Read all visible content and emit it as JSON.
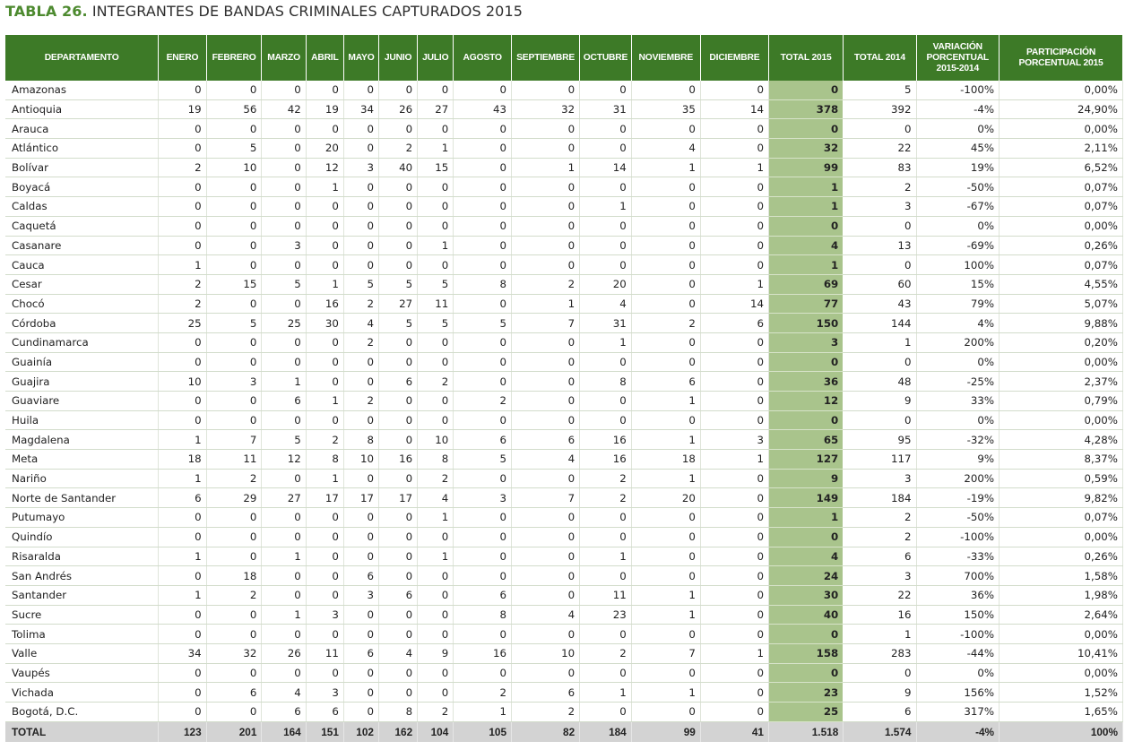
{
  "title": {
    "prefix": "TABLA 26.",
    "text": " INTEGRANTES DE BANDAS CRIMINALES CAPTURADOS 2015"
  },
  "headers": [
    "DEPARTAMENTO",
    "ENERO",
    "FEBRERO",
    "MARZO",
    "ABRIL",
    "MAYO",
    "JUNIO",
    "JULIO",
    "AGOSTO",
    "SEPTIEMBRE",
    "OCTUBRE",
    "NOVIEMBRE",
    "DICIEMBRE",
    "TOTAL 2015",
    "TOTAL 2014",
    "VARIACIÓN PORCENTUAL 2015-2014",
    "PARTICIPACIÓN PORCENTUAL 2015"
  ],
  "rows": [
    [
      "Amazonas",
      "0",
      "0",
      "0",
      "0",
      "0",
      "0",
      "0",
      "0",
      "0",
      "0",
      "0",
      "0",
      "0",
      "5",
      "-100%",
      "0,00%"
    ],
    [
      "Antioquia",
      "19",
      "56",
      "42",
      "19",
      "34",
      "26",
      "27",
      "43",
      "32",
      "31",
      "35",
      "14",
      "378",
      "392",
      "-4%",
      "24,90%"
    ],
    [
      "Arauca",
      "0",
      "0",
      "0",
      "0",
      "0",
      "0",
      "0",
      "0",
      "0",
      "0",
      "0",
      "0",
      "0",
      "0",
      "0%",
      "0,00%"
    ],
    [
      "Atlántico",
      "0",
      "5",
      "0",
      "20",
      "0",
      "2",
      "1",
      "0",
      "0",
      "0",
      "4",
      "0",
      "32",
      "22",
      "45%",
      "2,11%"
    ],
    [
      "Bolívar",
      "2",
      "10",
      "0",
      "12",
      "3",
      "40",
      "15",
      "0",
      "1",
      "14",
      "1",
      "1",
      "99",
      "83",
      "19%",
      "6,52%"
    ],
    [
      "Boyacá",
      "0",
      "0",
      "0",
      "1",
      "0",
      "0",
      "0",
      "0",
      "0",
      "0",
      "0",
      "0",
      "1",
      "2",
      "-50%",
      "0,07%"
    ],
    [
      "Caldas",
      "0",
      "0",
      "0",
      "0",
      "0",
      "0",
      "0",
      "0",
      "0",
      "1",
      "0",
      "0",
      "1",
      "3",
      "-67%",
      "0,07%"
    ],
    [
      "Caquetá",
      "0",
      "0",
      "0",
      "0",
      "0",
      "0",
      "0",
      "0",
      "0",
      "0",
      "0",
      "0",
      "0",
      "0",
      "0%",
      "0,00%"
    ],
    [
      "Casanare",
      "0",
      "0",
      "3",
      "0",
      "0",
      "0",
      "1",
      "0",
      "0",
      "0",
      "0",
      "0",
      "4",
      "13",
      "-69%",
      "0,26%"
    ],
    [
      "Cauca",
      "1",
      "0",
      "0",
      "0",
      "0",
      "0",
      "0",
      "0",
      "0",
      "0",
      "0",
      "0",
      "1",
      "0",
      "100%",
      "0,07%"
    ],
    [
      "Cesar",
      "2",
      "15",
      "5",
      "1",
      "5",
      "5",
      "5",
      "8",
      "2",
      "20",
      "0",
      "1",
      "69",
      "60",
      "15%",
      "4,55%"
    ],
    [
      "Chocó",
      "2",
      "0",
      "0",
      "16",
      "2",
      "27",
      "11",
      "0",
      "1",
      "4",
      "0",
      "14",
      "77",
      "43",
      "79%",
      "5,07%"
    ],
    [
      "Córdoba",
      "25",
      "5",
      "25",
      "30",
      "4",
      "5",
      "5",
      "5",
      "7",
      "31",
      "2",
      "6",
      "150",
      "144",
      "4%",
      "9,88%"
    ],
    [
      "Cundinamarca",
      "0",
      "0",
      "0",
      "0",
      "2",
      "0",
      "0",
      "0",
      "0",
      "1",
      "0",
      "0",
      "3",
      "1",
      "200%",
      "0,20%"
    ],
    [
      "Guainía",
      "0",
      "0",
      "0",
      "0",
      "0",
      "0",
      "0",
      "0",
      "0",
      "0",
      "0",
      "0",
      "0",
      "0",
      "0%",
      "0,00%"
    ],
    [
      "Guajira",
      "10",
      "3",
      "1",
      "0",
      "0",
      "6",
      "2",
      "0",
      "0",
      "8",
      "6",
      "0",
      "36",
      "48",
      "-25%",
      "2,37%"
    ],
    [
      "Guaviare",
      "0",
      "0",
      "6",
      "1",
      "2",
      "0",
      "0",
      "2",
      "0",
      "0",
      "1",
      "0",
      "12",
      "9",
      "33%",
      "0,79%"
    ],
    [
      "Huila",
      "0",
      "0",
      "0",
      "0",
      "0",
      "0",
      "0",
      "0",
      "0",
      "0",
      "0",
      "0",
      "0",
      "0",
      "0%",
      "0,00%"
    ],
    [
      "Magdalena",
      "1",
      "7",
      "5",
      "2",
      "8",
      "0",
      "10",
      "6",
      "6",
      "16",
      "1",
      "3",
      "65",
      "95",
      "-32%",
      "4,28%"
    ],
    [
      "Meta",
      "18",
      "11",
      "12",
      "8",
      "10",
      "16",
      "8",
      "5",
      "4",
      "16",
      "18",
      "1",
      "127",
      "117",
      "9%",
      "8,37%"
    ],
    [
      "Nariño",
      "1",
      "2",
      "0",
      "1",
      "0",
      "0",
      "2",
      "0",
      "0",
      "2",
      "1",
      "0",
      "9",
      "3",
      "200%",
      "0,59%"
    ],
    [
      "Norte de Santander",
      "6",
      "29",
      "27",
      "17",
      "17",
      "17",
      "4",
      "3",
      "7",
      "2",
      "20",
      "0",
      "149",
      "184",
      "-19%",
      "9,82%"
    ],
    [
      "Putumayo",
      "0",
      "0",
      "0",
      "0",
      "0",
      "0",
      "1",
      "0",
      "0",
      "0",
      "0",
      "0",
      "1",
      "2",
      "-50%",
      "0,07%"
    ],
    [
      "Quindío",
      "0",
      "0",
      "0",
      "0",
      "0",
      "0",
      "0",
      "0",
      "0",
      "0",
      "0",
      "0",
      "0",
      "2",
      "-100%",
      "0,00%"
    ],
    [
      "Risaralda",
      "1",
      "0",
      "1",
      "0",
      "0",
      "0",
      "1",
      "0",
      "0",
      "1",
      "0",
      "0",
      "4",
      "6",
      "-33%",
      "0,26%"
    ],
    [
      "San Andrés",
      "0",
      "18",
      "0",
      "0",
      "6",
      "0",
      "0",
      "0",
      "0",
      "0",
      "0",
      "0",
      "24",
      "3",
      "700%",
      "1,58%"
    ],
    [
      "Santander",
      "1",
      "2",
      "0",
      "0",
      "3",
      "6",
      "0",
      "6",
      "0",
      "11",
      "1",
      "0",
      "30",
      "22",
      "36%",
      "1,98%"
    ],
    [
      "Sucre",
      "0",
      "0",
      "1",
      "3",
      "0",
      "0",
      "0",
      "8",
      "4",
      "23",
      "1",
      "0",
      "40",
      "16",
      "150%",
      "2,64%"
    ],
    [
      "Tolima",
      "0",
      "0",
      "0",
      "0",
      "0",
      "0",
      "0",
      "0",
      "0",
      "0",
      "0",
      "0",
      "0",
      "1",
      "-100%",
      "0,00%"
    ],
    [
      "Valle",
      "34",
      "32",
      "26",
      "11",
      "6",
      "4",
      "9",
      "16",
      "10",
      "2",
      "7",
      "1",
      "158",
      "283",
      "-44%",
      "10,41%"
    ],
    [
      "Vaupés",
      "0",
      "0",
      "0",
      "0",
      "0",
      "0",
      "0",
      "0",
      "0",
      "0",
      "0",
      "0",
      "0",
      "0",
      "0%",
      "0,00%"
    ],
    [
      "Vichada",
      "0",
      "6",
      "4",
      "3",
      "0",
      "0",
      "0",
      "2",
      "6",
      "1",
      "1",
      "0",
      "23",
      "9",
      "156%",
      "1,52%"
    ],
    [
      "Bogotá, D.C.",
      "0",
      "0",
      "6",
      "6",
      "0",
      "8",
      "2",
      "1",
      "2",
      "0",
      "0",
      "0",
      "25",
      "6",
      "317%",
      "1,65%"
    ]
  ],
  "total_row": [
    "TOTAL",
    "123",
    "201",
    "164",
    "151",
    "102",
    "162",
    "104",
    "105",
    "82",
    "184",
    "99",
    "41",
    "1.518",
    "1.574",
    "-4%",
    "100%"
  ],
  "colors": {
    "header_bg": "#3d7a27",
    "total2015_bg": "#a9c48c",
    "total_row_bg": "#d3d3d3",
    "title_accent": "#4d8a2f"
  }
}
